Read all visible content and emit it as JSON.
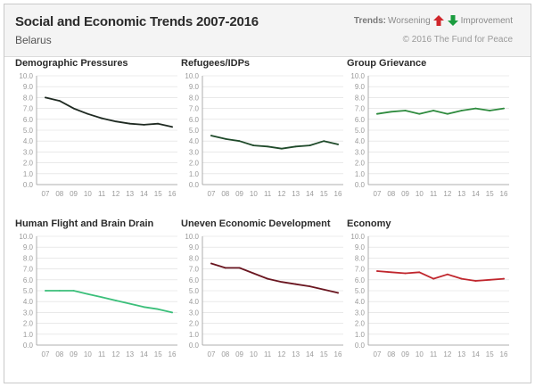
{
  "header": {
    "title": "Social and Economic Trends 2007-2016",
    "country": "Belarus",
    "legend_label": "Trends:",
    "legend_worsening": "Worsening",
    "legend_improvement": "Improvement",
    "copyright": "© 2016 The Fund for Peace"
  },
  "colors": {
    "worsening_arrow": "#d0262b",
    "improvement_arrow": "#1a9c3e",
    "gridline": "#dcdcdc",
    "axis": "#9a9a9a"
  },
  "chart_data": [
    {
      "type": "line",
      "title": "Demographic Pressures",
      "x": [
        "07",
        "08",
        "09",
        "10",
        "11",
        "12",
        "13",
        "14",
        "15",
        "16"
      ],
      "values": [
        8.0,
        7.7,
        7.0,
        6.5,
        6.1,
        5.8,
        5.6,
        5.5,
        5.6,
        5.3
      ],
      "ylim": [
        0,
        10
      ],
      "yticks": [
        "0.0",
        "1.0",
        "2.0",
        "3.0",
        "4.0",
        "5.0",
        "6.0",
        "7.0",
        "8.0",
        "9.0",
        "10.0"
      ],
      "color": "#1f2a22"
    },
    {
      "type": "line",
      "title": "Refugees/IDPs",
      "x": [
        "07",
        "08",
        "09",
        "10",
        "11",
        "12",
        "13",
        "14",
        "15",
        "16"
      ],
      "values": [
        4.5,
        4.2,
        4.0,
        3.6,
        3.5,
        3.3,
        3.5,
        3.6,
        4.0,
        3.7
      ],
      "ylim": [
        0,
        10
      ],
      "yticks": [
        "0.0",
        "1.0",
        "2.0",
        "3.0",
        "4.0",
        "5.0",
        "6.0",
        "7.0",
        "8.0",
        "9.0",
        "10.0"
      ],
      "color": "#1f4a2a"
    },
    {
      "type": "line",
      "title": "Group Grievance",
      "x": [
        "07",
        "08",
        "09",
        "10",
        "11",
        "12",
        "13",
        "14",
        "15",
        "16"
      ],
      "values": [
        6.5,
        6.7,
        6.8,
        6.5,
        6.8,
        6.5,
        6.8,
        7.0,
        6.8,
        7.0
      ],
      "ylim": [
        0,
        10
      ],
      "yticks": [
        "0.0",
        "1.0",
        "2.0",
        "3.0",
        "4.0",
        "5.0",
        "6.0",
        "7.0",
        "8.0",
        "9.0",
        "10.0"
      ],
      "color": "#2e8b3e"
    },
    {
      "type": "line",
      "title": "Human Flight and Brain Drain",
      "x": [
        "07",
        "08",
        "09",
        "10",
        "11",
        "12",
        "13",
        "14",
        "15",
        "16"
      ],
      "values": [
        5.0,
        5.0,
        5.0,
        4.7,
        4.4,
        4.1,
        3.8,
        3.5,
        3.3,
        3.0
      ],
      "ylim": [
        0,
        10
      ],
      "yticks": [
        "0.0",
        "1.0",
        "2.0",
        "3.0",
        "4.0",
        "5.0",
        "6.0",
        "7.0",
        "8.0",
        "9.0",
        "10.0"
      ],
      "color": "#3bbf7a"
    },
    {
      "type": "line",
      "title": "Uneven Economic Development",
      "x": [
        "07",
        "08",
        "09",
        "10",
        "11",
        "12",
        "13",
        "14",
        "15",
        "16"
      ],
      "values": [
        7.5,
        7.1,
        7.1,
        6.6,
        6.1,
        5.8,
        5.6,
        5.4,
        5.1,
        4.8
      ],
      "ylim": [
        0,
        10
      ],
      "yticks": [
        "0.0",
        "1.0",
        "2.0",
        "3.0",
        "4.0",
        "5.0",
        "6.0",
        "7.0",
        "8.0",
        "9.0",
        "10.0"
      ],
      "color": "#6a1620"
    },
    {
      "type": "line",
      "title": "Economy",
      "x": [
        "07",
        "08",
        "09",
        "10",
        "11",
        "12",
        "13",
        "14",
        "15",
        "16"
      ],
      "values": [
        6.8,
        6.7,
        6.6,
        6.7,
        6.1,
        6.5,
        6.1,
        5.9,
        6.0,
        6.1
      ],
      "ylim": [
        0,
        10
      ],
      "yticks": [
        "0.0",
        "1.0",
        "2.0",
        "3.0",
        "4.0",
        "5.0",
        "6.0",
        "7.0",
        "8.0",
        "9.0",
        "10.0"
      ],
      "color": "#c0262d"
    }
  ]
}
